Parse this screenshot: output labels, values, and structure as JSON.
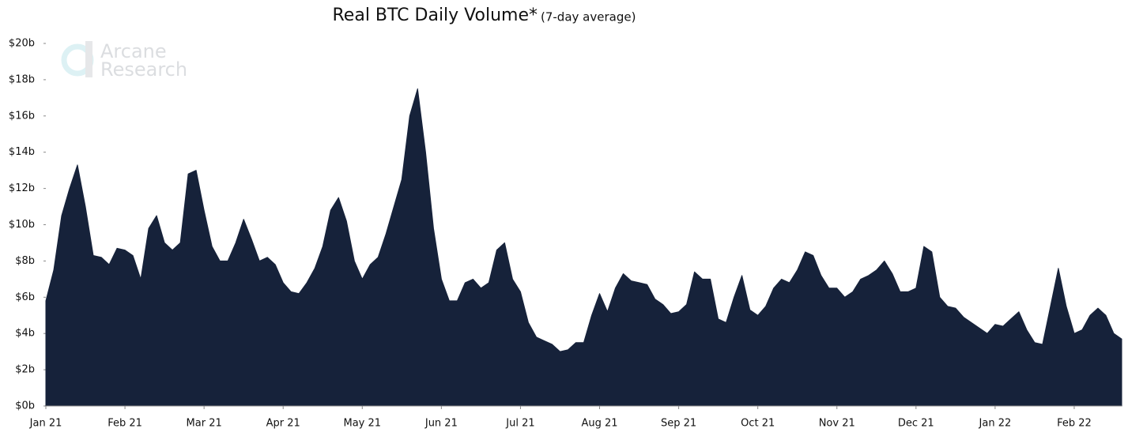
{
  "chart_data": {
    "type": "area",
    "title": "Real BTC Daily Volume*",
    "subtitle": "(7-day average)",
    "watermark": [
      "Arcane",
      "Research"
    ],
    "color": "#16223a",
    "categories": [
      "Jan 21",
      null,
      null,
      null,
      null,
      null,
      null,
      null,
      null,
      null,
      "Feb 21",
      null,
      null,
      null,
      null,
      null,
      null,
      null,
      null,
      null,
      "Mar 21",
      null,
      null,
      null,
      null,
      null,
      null,
      null,
      null,
      null,
      "Apr 21",
      null,
      null,
      null,
      null,
      null,
      null,
      null,
      null,
      null,
      "May 21",
      null,
      null,
      null,
      null,
      null,
      null,
      null,
      null,
      null,
      "Jun 21",
      null,
      null,
      null,
      null,
      null,
      null,
      null,
      null,
      null,
      "Jul 21",
      null,
      null,
      null,
      null,
      null,
      null,
      null,
      null,
      null,
      "Aug 21",
      null,
      null,
      null,
      null,
      null,
      null,
      null,
      null,
      null,
      "Sep 21",
      null,
      null,
      null,
      null,
      null,
      null,
      null,
      null,
      null,
      "Oct 21",
      null,
      null,
      null,
      null,
      null,
      null,
      null,
      null,
      null,
      "Nov 21",
      null,
      null,
      null,
      null,
      null,
      null,
      null,
      null,
      null,
      "Dec 21",
      null,
      null,
      null,
      null,
      null,
      null,
      null,
      null,
      null,
      "Jan 22",
      null,
      null,
      null,
      null,
      null,
      null,
      null,
      null,
      null,
      "Feb 22",
      null,
      null,
      null,
      null,
      null,
      null
    ],
    "values": [
      5.8,
      7.5,
      10.5,
      12.0,
      13.3,
      11.0,
      8.3,
      8.2,
      7.8,
      8.7,
      8.6,
      8.3,
      7.0,
      9.8,
      10.5,
      9.0,
      8.6,
      9.0,
      12.8,
      13.0,
      10.8,
      8.8,
      8.0,
      8.0,
      9.0,
      10.3,
      9.2,
      8.0,
      8.2,
      7.8,
      6.8,
      6.3,
      6.2,
      6.8,
      7.6,
      8.8,
      10.8,
      11.5,
      10.2,
      8.0,
      7.0,
      7.8,
      8.2,
      9.5,
      11.0,
      12.5,
      16.0,
      17.5,
      14.0,
      9.8,
      7.0,
      5.8,
      5.8,
      6.8,
      7.0,
      6.5,
      6.8,
      8.6,
      9.0,
      7.0,
      6.3,
      4.6,
      3.8,
      3.6,
      3.4,
      3.0,
      3.1,
      3.5,
      3.5,
      5.0,
      6.2,
      5.2,
      6.5,
      7.3,
      6.9,
      6.8,
      6.7,
      5.9,
      5.6,
      5.1,
      5.2,
      5.6,
      7.4,
      7.0,
      7.0,
      4.8,
      4.6,
      6.0,
      7.2,
      5.3,
      5.0,
      5.5,
      6.5,
      7.0,
      6.8,
      7.5,
      8.5,
      8.3,
      7.2,
      6.5,
      6.5,
      6.0,
      6.3,
      7.0,
      7.2,
      7.5,
      8.0,
      7.3,
      6.3,
      6.3,
      6.5,
      8.8,
      8.5,
      6.0,
      5.5,
      5.4,
      4.9,
      4.6,
      4.3,
      4.0,
      4.5,
      4.4,
      4.8,
      5.2,
      4.2,
      3.5,
      3.4,
      5.5,
      7.6,
      5.5,
      4.0,
      4.2,
      5.0,
      5.4,
      5.0,
      4.0,
      3.7
    ],
    "ylim": [
      0,
      20
    ],
    "yticks": [
      {
        "value": 0,
        "label": "$0b"
      },
      {
        "value": 2,
        "label": "$2b"
      },
      {
        "value": 4,
        "label": "$4b"
      },
      {
        "value": 6,
        "label": "$6b"
      },
      {
        "value": 8,
        "label": "$8b"
      },
      {
        "value": 10,
        "label": "$10b"
      },
      {
        "value": 12,
        "label": "$12b"
      },
      {
        "value": 14,
        "label": "$14b"
      },
      {
        "value": 16,
        "label": "$16b"
      },
      {
        "value": 18,
        "label": "$18b"
      },
      {
        "value": 20,
        "label": "$20b"
      }
    ]
  }
}
